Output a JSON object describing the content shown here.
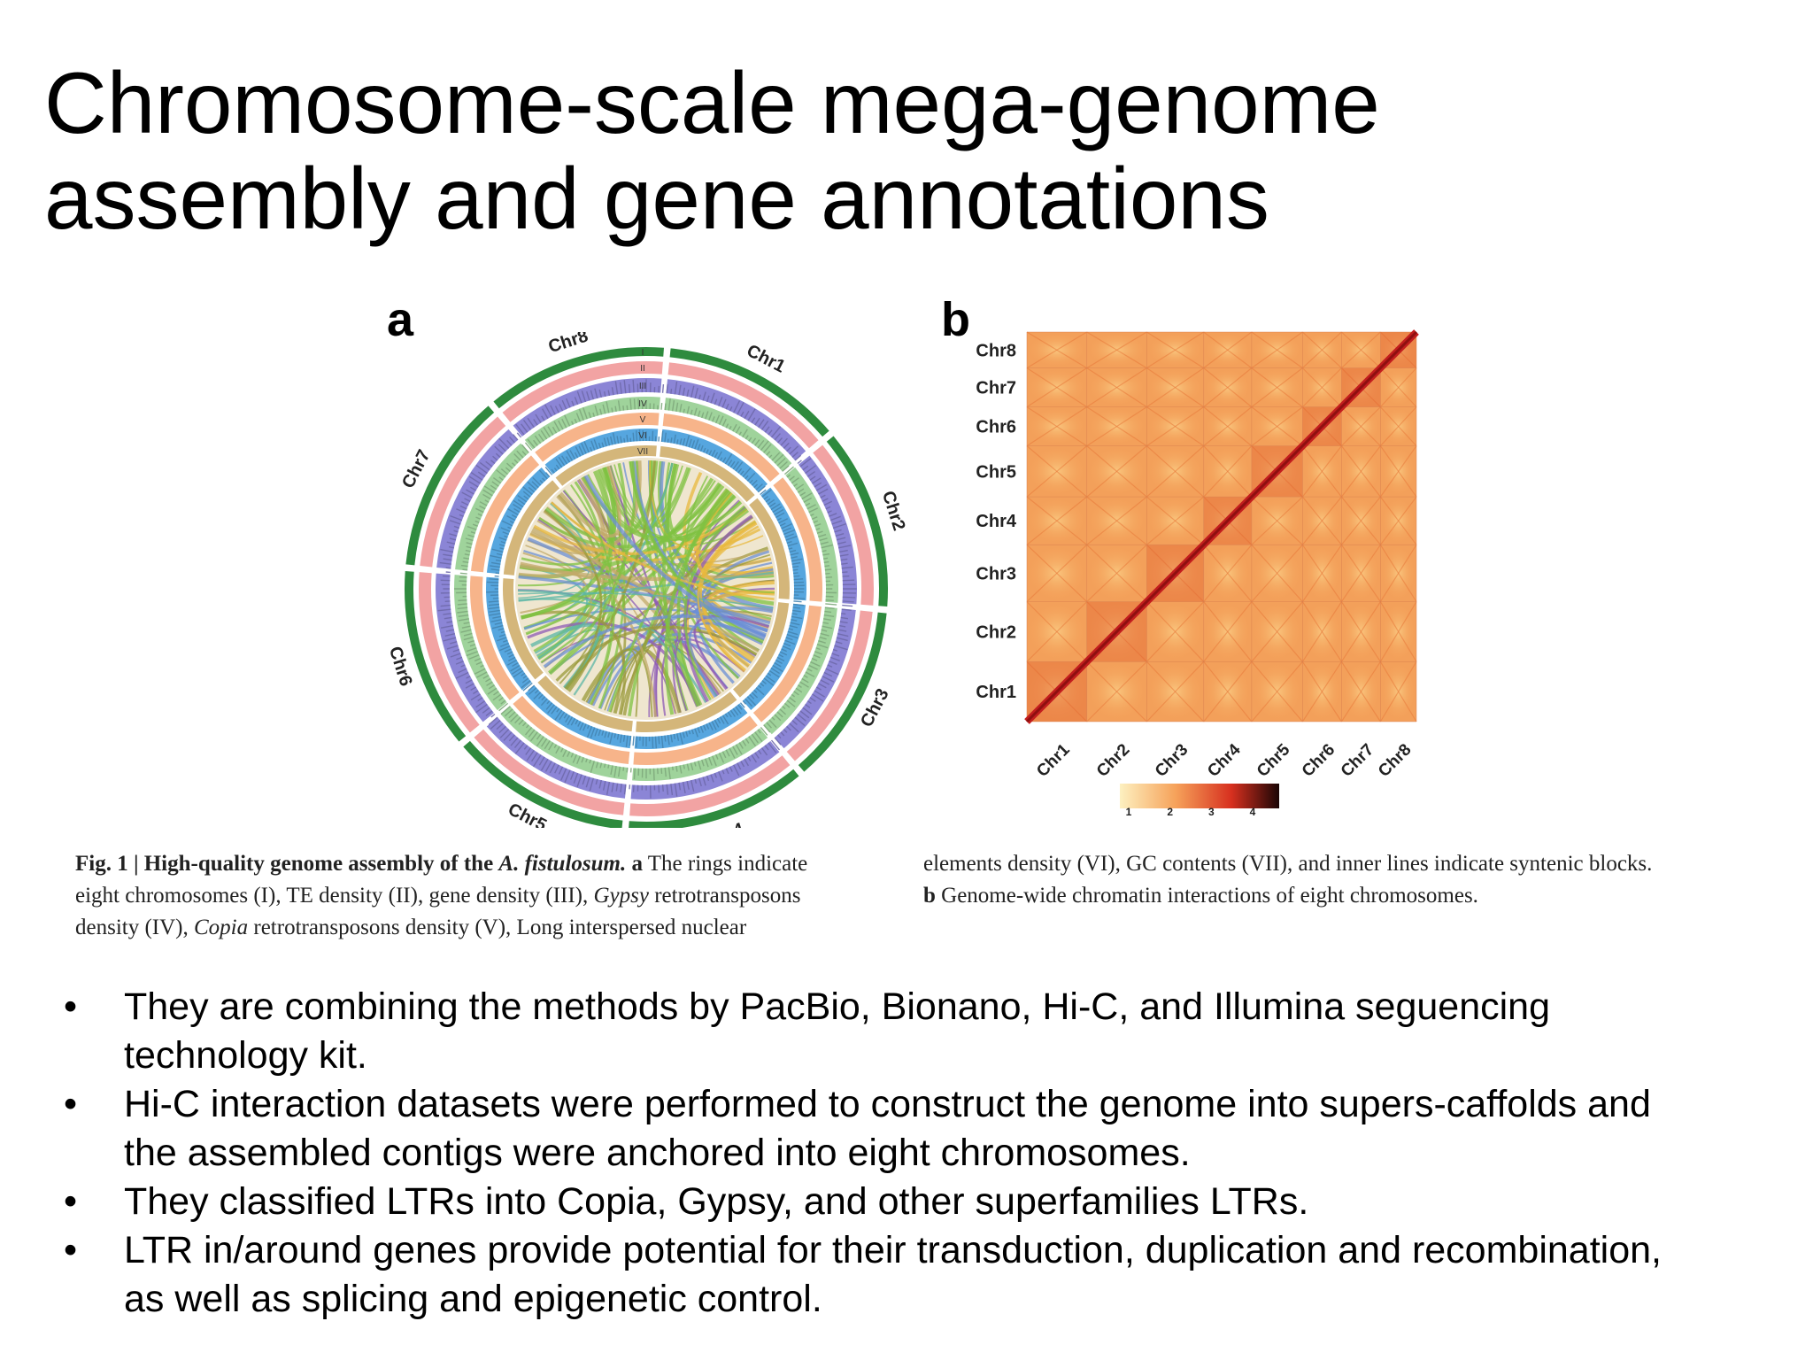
{
  "slide": {
    "title_line1": "Chromosome-scale mega-genome",
    "title_line2": "assembly and gene annotations"
  },
  "figure": {
    "panel_a_label": "a",
    "panel_b_label": "b",
    "circos": {
      "chromosomes": [
        "Chr1",
        "Chr2",
        "Chr3",
        "Chr4",
        "Chr5",
        "Chr6",
        "Chr7",
        "Chr8"
      ],
      "ring_labels": [
        "I",
        "II",
        "III",
        "IV",
        "V",
        "VI",
        "VII"
      ],
      "ring_colors": [
        "#2e8b3e",
        "#f2a3a3",
        "#8b85d6",
        "#9fd39b",
        "#f7b48a",
        "#56a6df",
        "#d4b67a"
      ]
    },
    "heatmap": {
      "y_labels": [
        "Chr8",
        "Chr7",
        "Chr6",
        "Chr5",
        "Chr4",
        "Chr3",
        "Chr2",
        "Chr1"
      ],
      "x_labels": [
        "Chr1",
        "Chr2",
        "Chr3",
        "Chr4",
        "Chr5",
        "Chr6",
        "Chr7",
        "Chr8"
      ],
      "colorbar_ticks": [
        "1",
        "2",
        "3",
        "4"
      ],
      "colors": {
        "low": "#fbe2a0",
        "mid": "#f39a4a",
        "high": "#c21e1e",
        "max": "#2b0a0a"
      }
    },
    "caption": {
      "fig_label": "Fig. 1 | High-quality genome assembly of the ",
      "species": "A. fistulosum.",
      "a_marker": "a",
      "col1_text1": " The rings indicate",
      "col1_line2": "eight chromosomes (I), TE density (II), gene density (III), ",
      "gypsy": "Gypsy",
      "col1_line2_end": " retrotransposons",
      "col1_line3_start": "density (IV), ",
      "copia": "Copia",
      "col1_line3_end": " retrotransposons density (V), Long interspersed nuclear",
      "col2_line1": "elements density (VI), GC contents (VII), and inner lines indicate syntenic blocks.",
      "b_marker": "b",
      "col2_line2": " Genome-wide chromatin interactions of eight chromosomes."
    }
  },
  "bullets": [
    {
      "line1": "They are combining the methods by PacBio, Bionano, Hi-C, and Illumina seguencing",
      "line2": "technology kit."
    },
    {
      "line1": "Hi-C interaction datasets were performed to construct the genome into supers-caffolds and",
      "line2": "the assembled contigs were anchored into eight chromosomes."
    },
    {
      "line1": "They classified LTRs into Copia, Gypsy, and other superfamilies LTRs.",
      "line2": ""
    },
    {
      "line1": "LTR in/around genes provide potential for their transduction, duplication and recombination,",
      "line2": "as well as splicing and epigenetic control."
    }
  ]
}
